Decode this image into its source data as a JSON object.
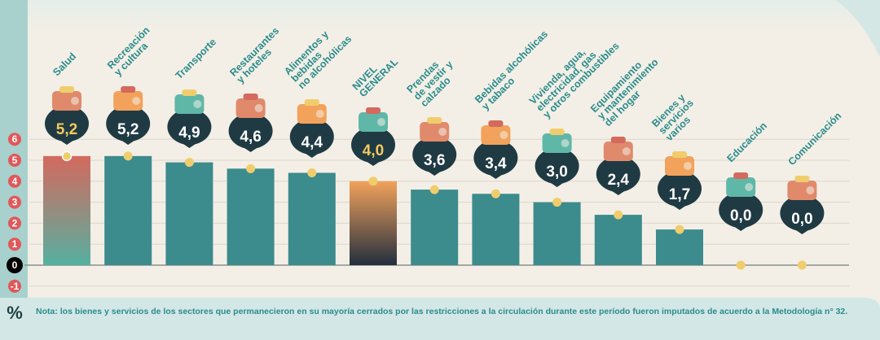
{
  "chart_data": {
    "type": "bar",
    "title": "",
    "xlabel": "",
    "ylabel": "",
    "unit_label": "%",
    "ylim": [
      -1,
      6
    ],
    "yticks": [
      "-1",
      "0",
      "1",
      "2",
      "3",
      "4",
      "5",
      "6"
    ],
    "categories": [
      "Salud",
      "Recreación y cultura",
      "Transporte",
      "Restaurantes y hoteles",
      "Alimentos y bebidas no alcohólicas",
      "NIVEL GENERAL",
      "Prendas de vestir y calzado",
      "Bebidas alcohólicas y tabaco",
      "Vivienda, agua, electricidad, gas y otros combustibles",
      "Equipamiento y mantenimiento del hogar",
      "Bienes y servicios varios",
      "Educación",
      "Comunicación"
    ],
    "label_lines": [
      [
        "Salud"
      ],
      [
        "Recreación",
        "y cultura"
      ],
      [
        "Transporte"
      ],
      [
        "Restaurantes",
        "y hoteles"
      ],
      [
        "Alimentos y",
        "bebidas",
        "no alcohólicas"
      ],
      [
        "NIVEL",
        "GENERAL"
      ],
      [
        "Prendas",
        "de vestir y",
        "calzado"
      ],
      [
        "Bebidas alcohólicas",
        "y tabaco"
      ],
      [
        "Vivienda, agua,",
        "electricidad, gas",
        "y otros combustibles"
      ],
      [
        "Equipamiento",
        "y mantenimiento",
        "del hogar"
      ],
      [
        "Bienes y",
        "servicios",
        "varios"
      ],
      [
        "Educación"
      ],
      [
        "Comunicación"
      ]
    ],
    "values": [
      5.2,
      5.2,
      4.9,
      4.6,
      4.4,
      4.0,
      3.6,
      3.4,
      3.0,
      2.4,
      1.7,
      0.0,
      0.0
    ],
    "value_labels": [
      "5,2",
      "5,2",
      "4,9",
      "4,6",
      "4,4",
      "4,0",
      "3,6",
      "3,4",
      "3,0",
      "2,4",
      "1,7",
      "0,0",
      "0,0"
    ],
    "highlight": [
      "Salud",
      "NIVEL GENERAL"
    ],
    "icons": [
      "first-aid-kit-icon",
      "theater-mask-icon",
      "car-icon",
      "chef-icon",
      "roast-chicken-icon",
      "shopping-basket-icon",
      "t-shirt-icon",
      "bottle-icon",
      "lightbulb-icon",
      "washing-machine-icon",
      "scissors-icon",
      "book-icon",
      "mobile-phone-icon"
    ],
    "grid": true,
    "colors": {
      "bar": "#3c8b8d",
      "salud_top": "#d4695e",
      "salud_bottom": "#56b0a0",
      "general_top": "#f2a25b",
      "general_bottom": "#232f3e",
      "label": "#2b8c8c",
      "badge": "#1f3a43",
      "value_text_highlight": "#f4c95d",
      "dot": "#f0cd6c",
      "axis_badge": "#e0585a",
      "background": "#f3efe6",
      "footer": "#d3e7e6"
    }
  },
  "note": "Nota: los bienes y servicios de los sectores que permanecieron en su mayoría cerrados por las restricciones a la circulación durante este período fueron imputados de acuerdo a la Metodología n° 32."
}
